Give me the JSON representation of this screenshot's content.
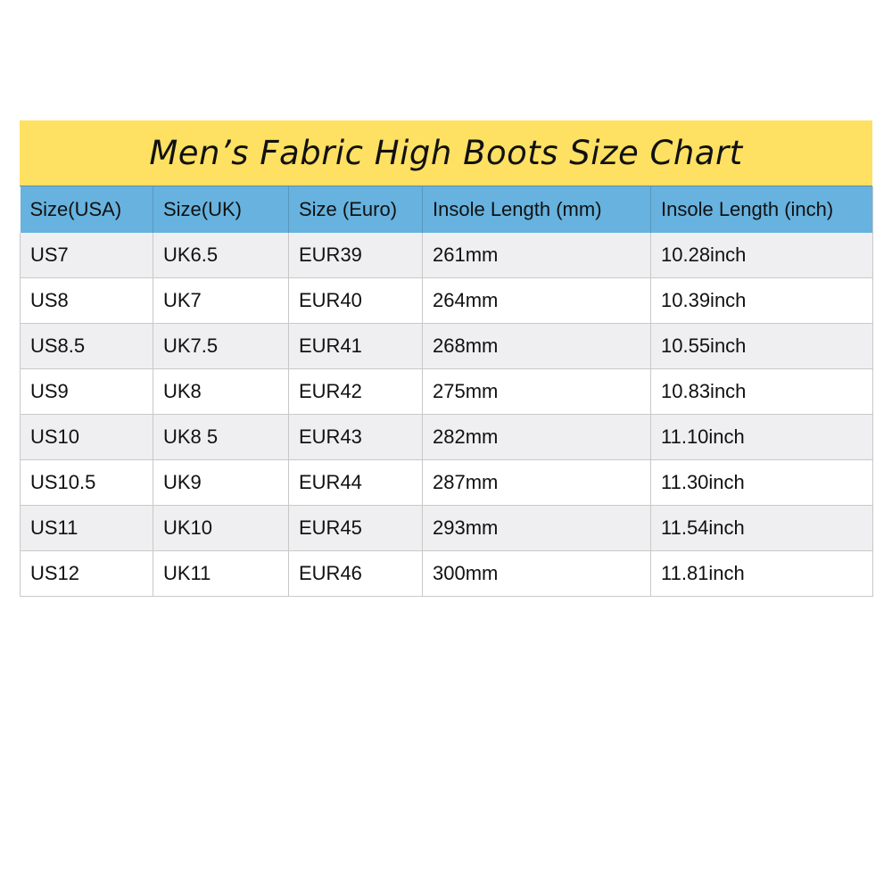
{
  "title": "Men’s Fabric High Boots Size Chart",
  "colors": {
    "title_bg": "#fee063",
    "header_bg": "#67b2de",
    "row_alt_bg": "#efeff1"
  },
  "headers": [
    "Size(USA)",
    "Size(UK)",
    "Size (Euro)",
    "Insole Length (mm)",
    "Insole Length (inch)"
  ],
  "rows": [
    [
      "US7",
      "UK6.5",
      "EUR39",
      "261mm",
      "10.28inch"
    ],
    [
      "US8",
      "UK7",
      "EUR40",
      "264mm",
      "10.39inch"
    ],
    [
      "US8.5",
      "UK7.5",
      "EUR41",
      "268mm",
      "10.55inch"
    ],
    [
      "US9",
      "UK8",
      "EUR42",
      "275mm",
      "10.83inch"
    ],
    [
      "US10",
      "UK8 5",
      "EUR43",
      "282mm",
      "11.10inch"
    ],
    [
      "US10.5",
      "UK9",
      "EUR44",
      "287mm",
      "11.30inch"
    ],
    [
      "US11",
      "UK10",
      "EUR45",
      "293mm",
      "11.54inch"
    ],
    [
      "US12",
      "UK11",
      "EUR46",
      "300mm",
      "11.81inch"
    ]
  ]
}
